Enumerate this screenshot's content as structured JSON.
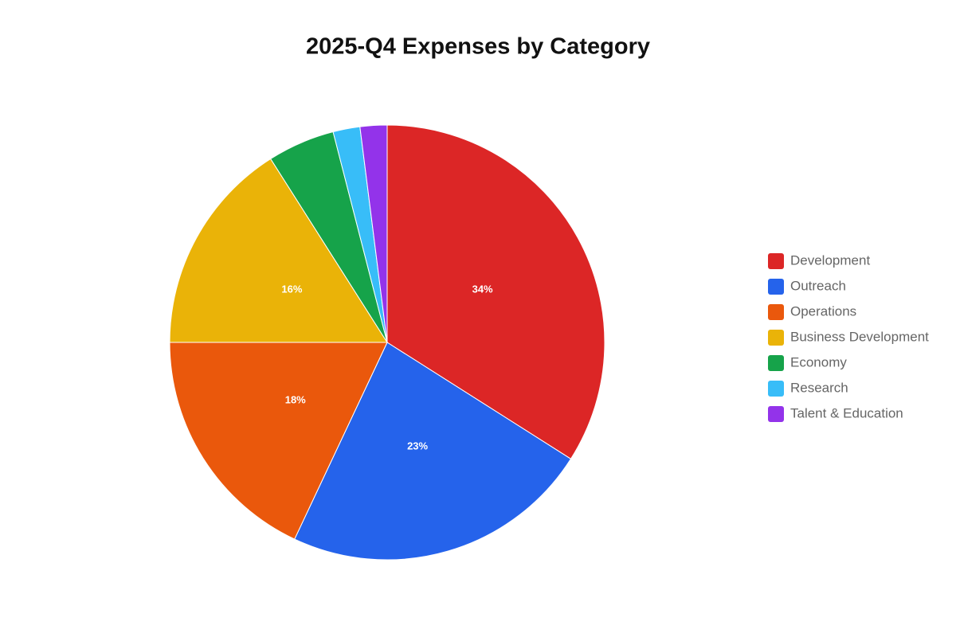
{
  "chart_data": {
    "type": "pie",
    "title": "2025-Q4 Expenses by Category",
    "categories": [
      "Development",
      "Outreach",
      "Operations",
      "Business Development",
      "Economy",
      "Research",
      "Talent & Education"
    ],
    "values": [
      34,
      23,
      18,
      16,
      5,
      2,
      2
    ],
    "value_labels": [
      "34%",
      "23%",
      "18%",
      "16%",
      null,
      null,
      null
    ],
    "colors": [
      "#dc2626",
      "#2563eb",
      "#ea580c",
      "#eab308",
      "#16a34a",
      "#38bdf8",
      "#9333ea"
    ],
    "legend": "right"
  }
}
